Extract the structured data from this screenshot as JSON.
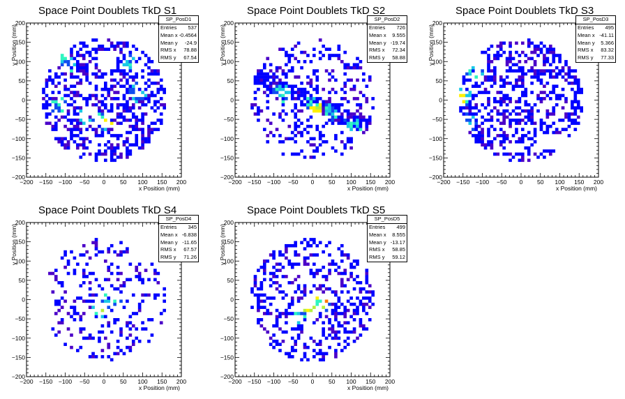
{
  "colors": {
    "bg": "#ffffff",
    "axis": "#000000",
    "palette": [
      "#4b00c8",
      "#0000ff",
      "#0f4cf0",
      "#19c8e6",
      "#2ef5c0",
      "#b4f03c",
      "#fff000",
      "#ff7a00",
      "#ff0000"
    ]
  },
  "chart_data": [
    {
      "type": "heatmap",
      "title": "Space Point Doublets TkD S1",
      "xlabel": "x Position (mm)",
      "ylabel": "y Position (mm)",
      "xlim": [
        -200,
        200
      ],
      "ylim": [
        -200,
        200
      ],
      "xticks": [
        "−200",
        "−150",
        "−100",
        "−50",
        "0",
        "50",
        "100",
        "150",
        "200"
      ],
      "yticks": [
        "−200",
        "−150",
        "−100",
        "−50",
        "0",
        "50",
        "100",
        "150",
        "200"
      ],
      "stats": {
        "name": "SP_PosD1",
        "rows": [
          [
            "Entries",
            "537"
          ],
          [
            "Mean x",
            "-0.4564"
          ],
          [
            "Mean y",
            "-24.9"
          ],
          [
            "RMS x",
            "78.88"
          ],
          [
            "RMS y",
            "67.54"
          ]
        ]
      },
      "seed": 11,
      "fill": 0.42,
      "hot": [
        [
          -40,
          -40
        ],
        [
          0,
          -55
        ],
        [
          90,
          20
        ],
        [
          -120,
          -10
        ],
        [
          75,
          95
        ],
        [
          -100,
          95
        ]
      ],
      "holes": [
        [
          -20,
          80,
          55,
          45
        ]
      ],
      "peak": [
        [
          5,
          -60,
          3
        ]
      ]
    },
    {
      "type": "heatmap",
      "title": "Space Point Doublets TkD S2",
      "xlabel": "x Position (mm)",
      "ylabel": "y Position (mm)",
      "xlim": [
        -200,
        200
      ],
      "ylim": [
        -200,
        200
      ],
      "xticks": [
        "−200",
        "−150",
        "−100",
        "−50",
        "0",
        "50",
        "100",
        "150",
        "200"
      ],
      "yticks": [
        "−200",
        "−150",
        "−100",
        "−50",
        "0",
        "50",
        "100",
        "150",
        "200"
      ],
      "stats": {
        "name": "SP_PosD2",
        "rows": [
          [
            "Entries",
            "726"
          ],
          [
            "Mean x",
            "9.555"
          ],
          [
            "Mean y",
            "-19.74"
          ],
          [
            "RMS x",
            "72.34"
          ],
          [
            "RMS y",
            "58.88"
          ]
        ]
      },
      "seed": 23,
      "fill": 0.3,
      "band": true,
      "hot": [
        [
          -80,
          20
        ],
        [
          0,
          -15
        ],
        [
          40,
          -35
        ],
        [
          100,
          -70
        ]
      ],
      "holes": [],
      "peak": [
        [
          10,
          -20,
          2
        ]
      ]
    },
    {
      "type": "heatmap",
      "title": "Space Point Doublets TkD S3",
      "xlabel": "x Position (mm)",
      "ylabel": "y Position (mm)",
      "xlim": [
        -200,
        200
      ],
      "ylim": [
        -200,
        200
      ],
      "xticks": [
        "−200",
        "−150",
        "−100",
        "−50",
        "0",
        "50",
        "100",
        "150",
        "200"
      ],
      "yticks": [
        "−200",
        "−150",
        "−100",
        "−50",
        "0",
        "50",
        "100",
        "150",
        "200"
      ],
      "stats": {
        "name": "SP_PosD3",
        "rows": [
          [
            "Entries",
            "495"
          ],
          [
            "Mean x",
            "-41.11"
          ],
          [
            "Mean y",
            "5.366"
          ],
          [
            "RMS x",
            "83.32"
          ],
          [
            "RMS y",
            "77.33"
          ]
        ]
      },
      "seed": 37,
      "fill": 0.4,
      "hot": [
        [
          -150,
          10
        ],
        [
          -120,
          80
        ],
        [
          -140,
          -60
        ]
      ],
      "holes": [
        [
          40,
          -130,
          80,
          40
        ],
        [
          -40,
          -140,
          50,
          30
        ]
      ],
      "peak": [
        [
          -155,
          5,
          2
        ]
      ]
    },
    {
      "type": "heatmap",
      "title": "Space Point Doublets TkD S4",
      "xlabel": "x Position (mm)",
      "ylabel": "y Position (mm)",
      "xlim": [
        -200,
        200
      ],
      "ylim": [
        -200,
        200
      ],
      "xticks": [
        "−200",
        "−150",
        "−100",
        "−50",
        "0",
        "50",
        "100",
        "150",
        "200"
      ],
      "yticks": [
        "−200",
        "−150",
        "−100",
        "−50",
        "0",
        "50",
        "100",
        "150",
        "200"
      ],
      "stats": {
        "name": "SP_PosD4",
        "rows": [
          [
            "Entries",
            "345"
          ],
          [
            "Mean x",
            "-6.838"
          ],
          [
            "Mean y",
            "-11.65"
          ],
          [
            "RMS x",
            "67.57"
          ],
          [
            "RMS y",
            "71.26"
          ]
        ]
      },
      "seed": 51,
      "fill": 0.2,
      "hot": [
        [
          -10,
          -20
        ],
        [
          20,
          0
        ]
      ],
      "holes": [],
      "peak": [
        [
          -5,
          -20,
          3
        ]
      ]
    },
    {
      "type": "heatmap",
      "title": "Space Point Doublets TkD S5",
      "xlabel": "x Position (mm)",
      "ylabel": "y Position (mm)",
      "xlim": [
        -200,
        200
      ],
      "ylim": [
        -200,
        200
      ],
      "xticks": [
        "−200",
        "−150",
        "−100",
        "−50",
        "0",
        "50",
        "100",
        "150",
        "200"
      ],
      "yticks": [
        "−200",
        "−150",
        "−100",
        "−50",
        "0",
        "50",
        "100",
        "150",
        "200"
      ],
      "stats": {
        "name": "SP_PosD5",
        "rows": [
          [
            "Entries",
            "499"
          ],
          [
            "Mean x",
            "8.555"
          ],
          [
            "Mean y",
            "-13.17"
          ],
          [
            "RMS x",
            "58.85"
          ],
          [
            "RMS y",
            "59.12"
          ]
        ]
      },
      "seed": 67,
      "fill": 0.3,
      "hot": [
        [
          -10,
          -20
        ],
        [
          20,
          -10
        ],
        [
          -30,
          -40
        ]
      ],
      "holes": [],
      "peak": [
        [
          -10,
          -20,
          4
        ],
        [
          25,
          -5,
          3
        ]
      ]
    }
  ]
}
